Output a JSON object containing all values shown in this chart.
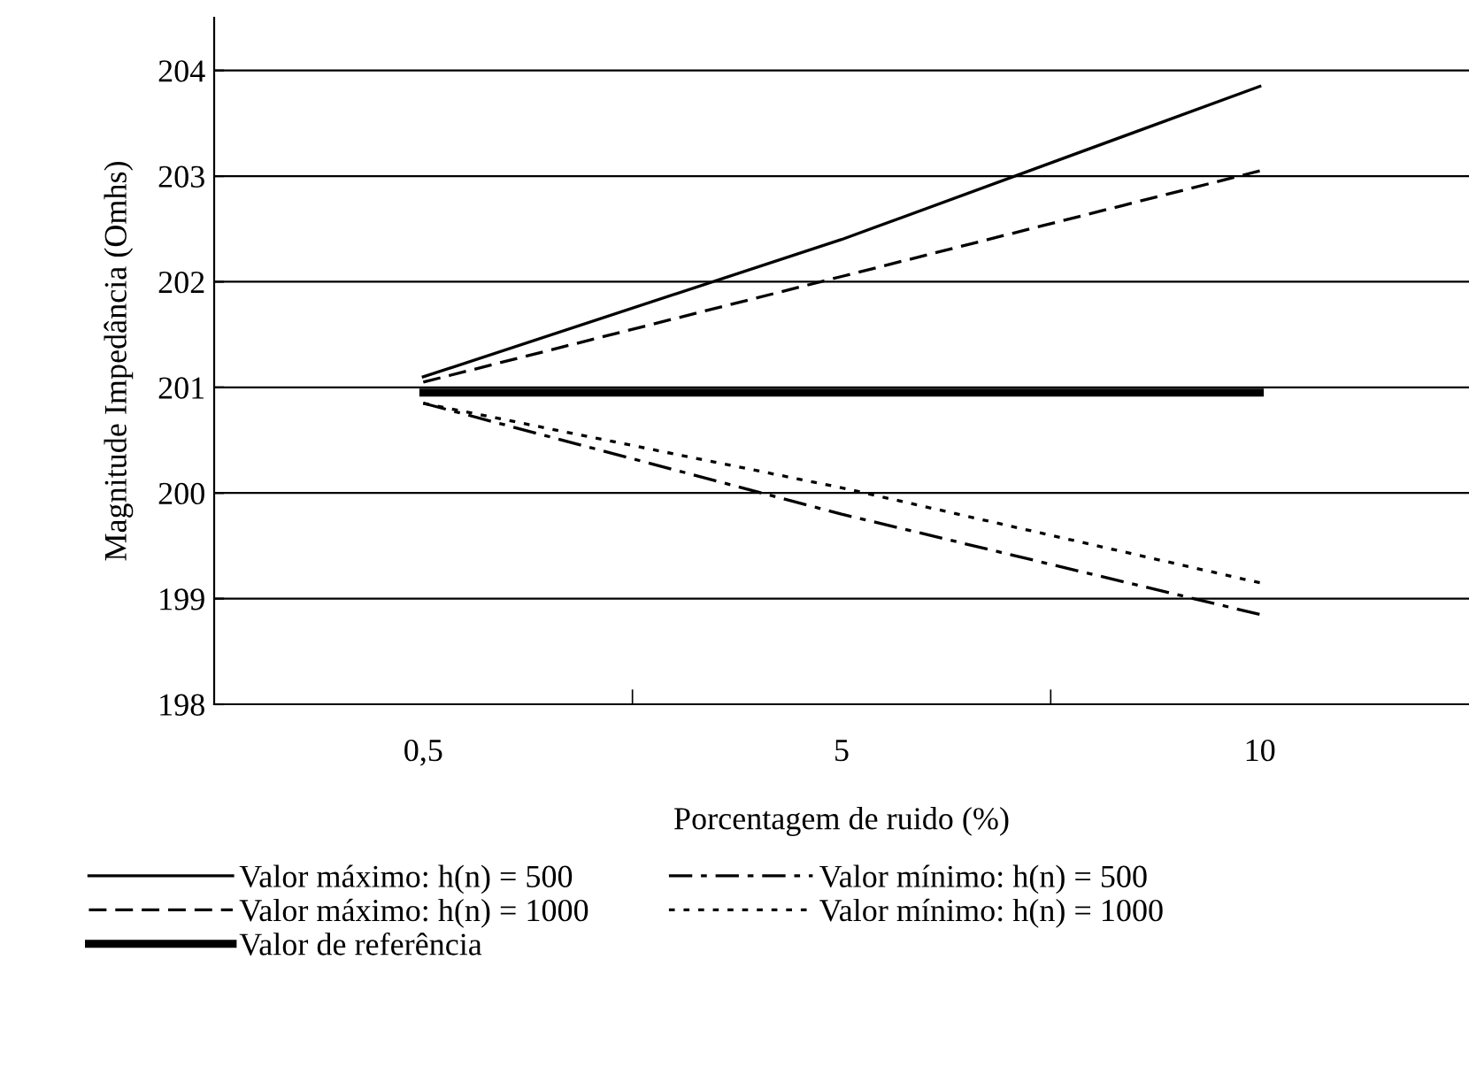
{
  "chart_data": {
    "type": "line",
    "xlabel": "Porcentagem de ruido (%)",
    "ylabel": "Magnitude Impedância (Omhs)",
    "categories": [
      "0,5",
      "5",
      "10"
    ],
    "series": [
      {
        "name": "Valor máximo: h(n) = 500",
        "color": "#000000",
        "line_style": "solid",
        "values": [
          201.1,
          202.4,
          203.85
        ]
      },
      {
        "name": "Valor mínimo: h(n) = 500",
        "color": "#000000",
        "line_style": "dashdot",
        "values": [
          200.85,
          199.8,
          198.85
        ]
      },
      {
        "name": "Valor máximo: h(n) = 1000",
        "color": "#000000",
        "line_style": "dashed",
        "values": [
          201.05,
          202.05,
          203.05
        ]
      },
      {
        "name": "Valor mínimo: h(n) = 1000",
        "color": "#000000",
        "line_style": "dotted",
        "values": [
          200.85,
          200.05,
          199.15
        ]
      },
      {
        "name": "Valor de referência",
        "color": "#000000",
        "line_style": "solid",
        "values": [
          200.95,
          200.95,
          200.95
        ]
      }
    ],
    "ylim": [
      198,
      204.5
    ],
    "yticks": [
      198,
      199,
      200,
      201,
      202,
      203,
      204
    ],
    "grid": "y",
    "legend": "bottom",
    "marker": "none"
  }
}
